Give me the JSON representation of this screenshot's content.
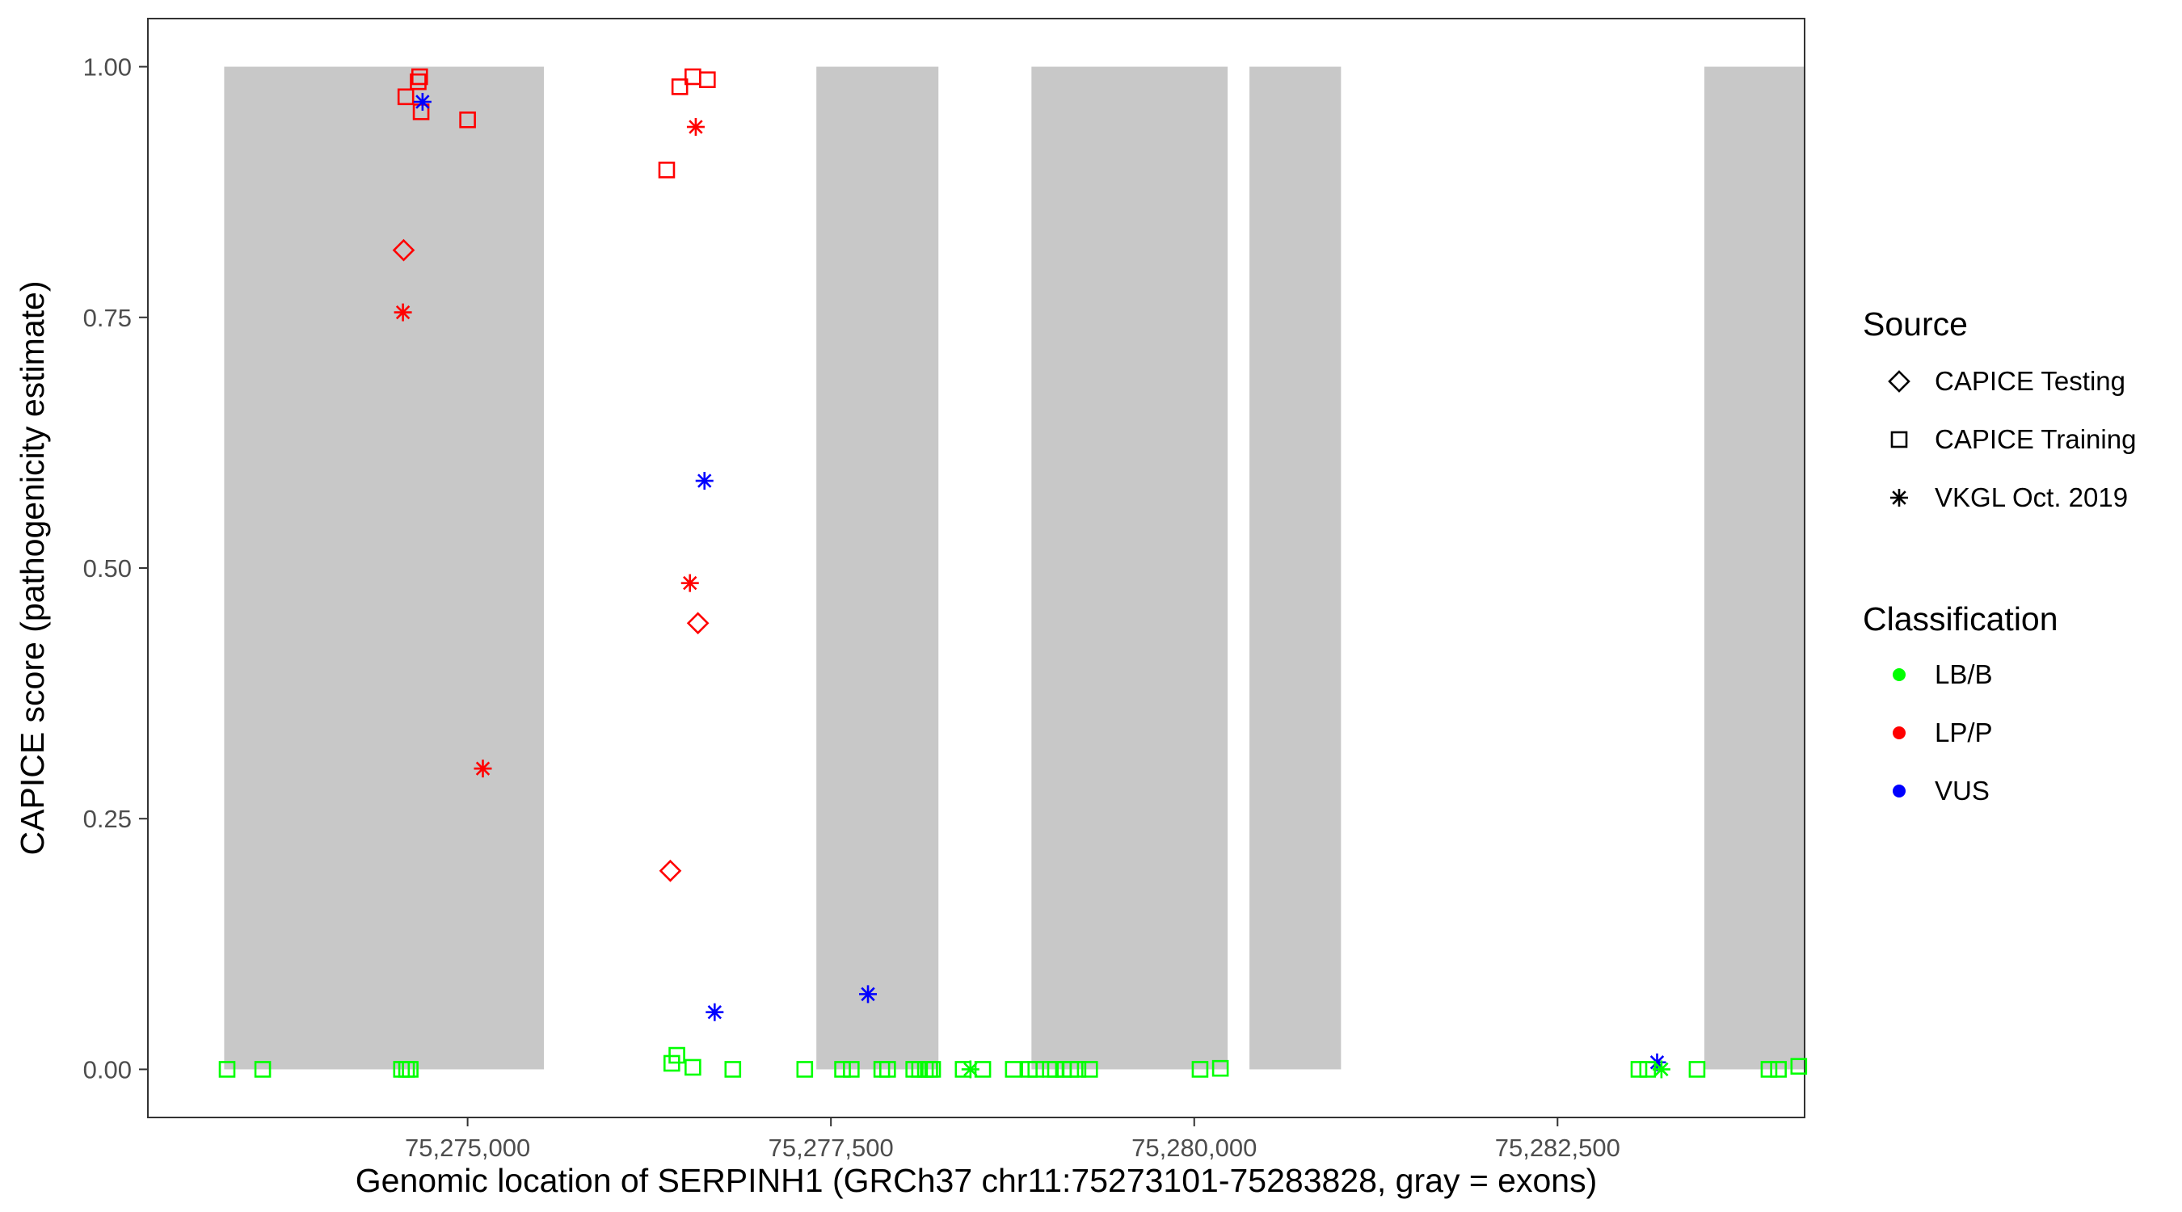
{
  "chart_data": {
    "type": "scatter",
    "xlabel": "Genomic location of SERPINH1 (GRCh37 chr11:75273101-75283828, gray = exons)",
    "ylabel": "CAPICE score (pathogenicity estimate)",
    "xlim": [
      75272800,
      75284200
    ],
    "ylim": [
      -0.048,
      1.048
    ],
    "x_ticks": [
      75275000,
      75277500,
      75280000,
      75282500
    ],
    "x_tick_labels": [
      "75,275,000",
      "75,277,500",
      "75,280,000",
      "75,282,500"
    ],
    "y_ticks": [
      0,
      0.25,
      0.5,
      0.75,
      1.0
    ],
    "y_tick_labels": [
      "0.00",
      "0.25",
      "0.50",
      "0.75",
      "1.00"
    ],
    "grid": false,
    "exons": [
      [
        75273325,
        75275525
      ],
      [
        75277400,
        75278240
      ],
      [
        75278880,
        75280230
      ],
      [
        75280380,
        75281010
      ],
      [
        75283510,
        75284800
      ]
    ],
    "legend": {
      "position": "right",
      "source_title": "Source",
      "source_entries": [
        {
          "label": "CAPICE Testing",
          "shape": "diamond"
        },
        {
          "label": "CAPICE Training",
          "shape": "square"
        },
        {
          "label": "VKGL Oct. 2019",
          "shape": "asterisk"
        }
      ],
      "class_title": "Classification",
      "class_entries": [
        {
          "label": "LB/B",
          "color": "#00ff00"
        },
        {
          "label": "LP/P",
          "color": "#ff0000"
        },
        {
          "label": "VUS",
          "color": "#0000ff"
        }
      ]
    },
    "points": [
      {
        "x": 75274575,
        "y": 0.97,
        "source": "square",
        "cls": "LP/P"
      },
      {
        "x": 75274660,
        "y": 0.985,
        "source": "square",
        "cls": "LP/P"
      },
      {
        "x": 75274670,
        "y": 0.99,
        "source": "square",
        "cls": "LP/P"
      },
      {
        "x": 75274680,
        "y": 0.955,
        "source": "square",
        "cls": "LP/P"
      },
      {
        "x": 75274690,
        "y": 0.965,
        "source": "asterisk",
        "cls": "VUS"
      },
      {
        "x": 75274560,
        "y": 0.817,
        "source": "diamond",
        "cls": "LP/P"
      },
      {
        "x": 75274555,
        "y": 0.755,
        "source": "asterisk",
        "cls": "LP/P"
      },
      {
        "x": 75275000,
        "y": 0.947,
        "source": "square",
        "cls": "LP/P"
      },
      {
        "x": 75275105,
        "y": 0.3,
        "source": "asterisk",
        "cls": "LP/P"
      },
      {
        "x": 75276370,
        "y": 0.897,
        "source": "square",
        "cls": "LP/P"
      },
      {
        "x": 75276460,
        "y": 0.98,
        "source": "square",
        "cls": "LP/P"
      },
      {
        "x": 75276550,
        "y": 0.99,
        "source": "square",
        "cls": "LP/P"
      },
      {
        "x": 75276650,
        "y": 0.987,
        "source": "square",
        "cls": "LP/P"
      },
      {
        "x": 75276570,
        "y": 0.94,
        "source": "asterisk",
        "cls": "LP/P"
      },
      {
        "x": 75276630,
        "y": 0.587,
        "source": "asterisk",
        "cls": "VUS"
      },
      {
        "x": 75276530,
        "y": 0.485,
        "source": "asterisk",
        "cls": "LP/P"
      },
      {
        "x": 75276585,
        "y": 0.445,
        "source": "diamond",
        "cls": "LP/P"
      },
      {
        "x": 75276395,
        "y": 0.198,
        "source": "diamond",
        "cls": "LP/P"
      },
      {
        "x": 75276700,
        "y": 0.057,
        "source": "asterisk",
        "cls": "VUS"
      },
      {
        "x": 75277755,
        "y": 0.075,
        "source": "asterisk",
        "cls": "VUS"
      },
      {
        "x": 75283185,
        "y": 0.007,
        "source": "asterisk",
        "cls": "VUS"
      },
      {
        "x": 75273345,
        "y": 0.0,
        "source": "square",
        "cls": "LB/B"
      },
      {
        "x": 75273590,
        "y": 0.0,
        "source": "square",
        "cls": "LB/B"
      },
      {
        "x": 75274545,
        "y": 0.0,
        "source": "square",
        "cls": "LB/B"
      },
      {
        "x": 75274580,
        "y": 0.0,
        "source": "square",
        "cls": "LB/B"
      },
      {
        "x": 75274605,
        "y": 0.0,
        "source": "square",
        "cls": "LB/B"
      },
      {
        "x": 75276405,
        "y": 0.006,
        "source": "square",
        "cls": "LB/B"
      },
      {
        "x": 75276440,
        "y": 0.014,
        "source": "square",
        "cls": "LB/B"
      },
      {
        "x": 75276550,
        "y": 0.002,
        "source": "square",
        "cls": "LB/B"
      },
      {
        "x": 75276825,
        "y": 0.0,
        "source": "square",
        "cls": "LB/B"
      },
      {
        "x": 75277320,
        "y": 0.0,
        "source": "square",
        "cls": "LB/B"
      },
      {
        "x": 75277580,
        "y": 0.0,
        "source": "square",
        "cls": "LB/B"
      },
      {
        "x": 75277640,
        "y": 0.0,
        "source": "square",
        "cls": "LB/B"
      },
      {
        "x": 75277850,
        "y": 0.0,
        "source": "square",
        "cls": "LB/B"
      },
      {
        "x": 75277890,
        "y": 0.0,
        "source": "square",
        "cls": "LB/B"
      },
      {
        "x": 75278070,
        "y": 0.0,
        "source": "square",
        "cls": "LB/B"
      },
      {
        "x": 75278110,
        "y": 0.0,
        "source": "square",
        "cls": "LB/B"
      },
      {
        "x": 75278150,
        "y": 0.0,
        "source": "square",
        "cls": "LB/B"
      },
      {
        "x": 75278180,
        "y": 0.0,
        "source": "square",
        "cls": "LB/B"
      },
      {
        "x": 75278200,
        "y": 0.0,
        "source": "square",
        "cls": "LB/B"
      },
      {
        "x": 75278410,
        "y": 0.0,
        "source": "square",
        "cls": "LB/B"
      },
      {
        "x": 75278460,
        "y": 0.0,
        "source": "asterisk",
        "cls": "LB/B"
      },
      {
        "x": 75278545,
        "y": 0.0,
        "source": "square",
        "cls": "LB/B"
      },
      {
        "x": 75278755,
        "y": 0.0,
        "source": "square",
        "cls": "LB/B"
      },
      {
        "x": 75279010,
        "y": 0.0,
        "source": "square",
        "cls": "LB/B"
      },
      {
        "x": 75279045,
        "y": 0.0,
        "source": "square",
        "cls": "LB/B"
      },
      {
        "x": 75278865,
        "y": 0.0,
        "source": "square",
        "cls": "LB/B"
      },
      {
        "x": 75278910,
        "y": 0.0,
        "source": "square",
        "cls": "LB/B"
      },
      {
        "x": 75279100,
        "y": 0.0,
        "source": "square",
        "cls": "LB/B"
      },
      {
        "x": 75279150,
        "y": 0.0,
        "source": "square",
        "cls": "LB/B"
      },
      {
        "x": 75279200,
        "y": 0.0,
        "source": "square",
        "cls": "LB/B"
      },
      {
        "x": 75279280,
        "y": 0.0,
        "source": "square",
        "cls": "LB/B"
      },
      {
        "x": 75280040,
        "y": 0.0,
        "source": "square",
        "cls": "LB/B"
      },
      {
        "x": 75280180,
        "y": 0.001,
        "source": "square",
        "cls": "LB/B"
      },
      {
        "x": 75283120,
        "y": 0.0,
        "source": "square",
        "cls": "LB/B"
      },
      {
        "x": 75283215,
        "y": 0.0,
        "source": "asterisk",
        "cls": "LB/B"
      },
      {
        "x": 75283060,
        "y": 0.0,
        "source": "square",
        "cls": "LB/B"
      },
      {
        "x": 75283460,
        "y": 0.0,
        "source": "square",
        "cls": "LB/B"
      },
      {
        "x": 75283955,
        "y": 0.0,
        "source": "square",
        "cls": "LB/B"
      },
      {
        "x": 75284020,
        "y": 0.0,
        "source": "square",
        "cls": "LB/B"
      },
      {
        "x": 75284160,
        "y": 0.003,
        "source": "square",
        "cls": "LB/B"
      }
    ]
  }
}
